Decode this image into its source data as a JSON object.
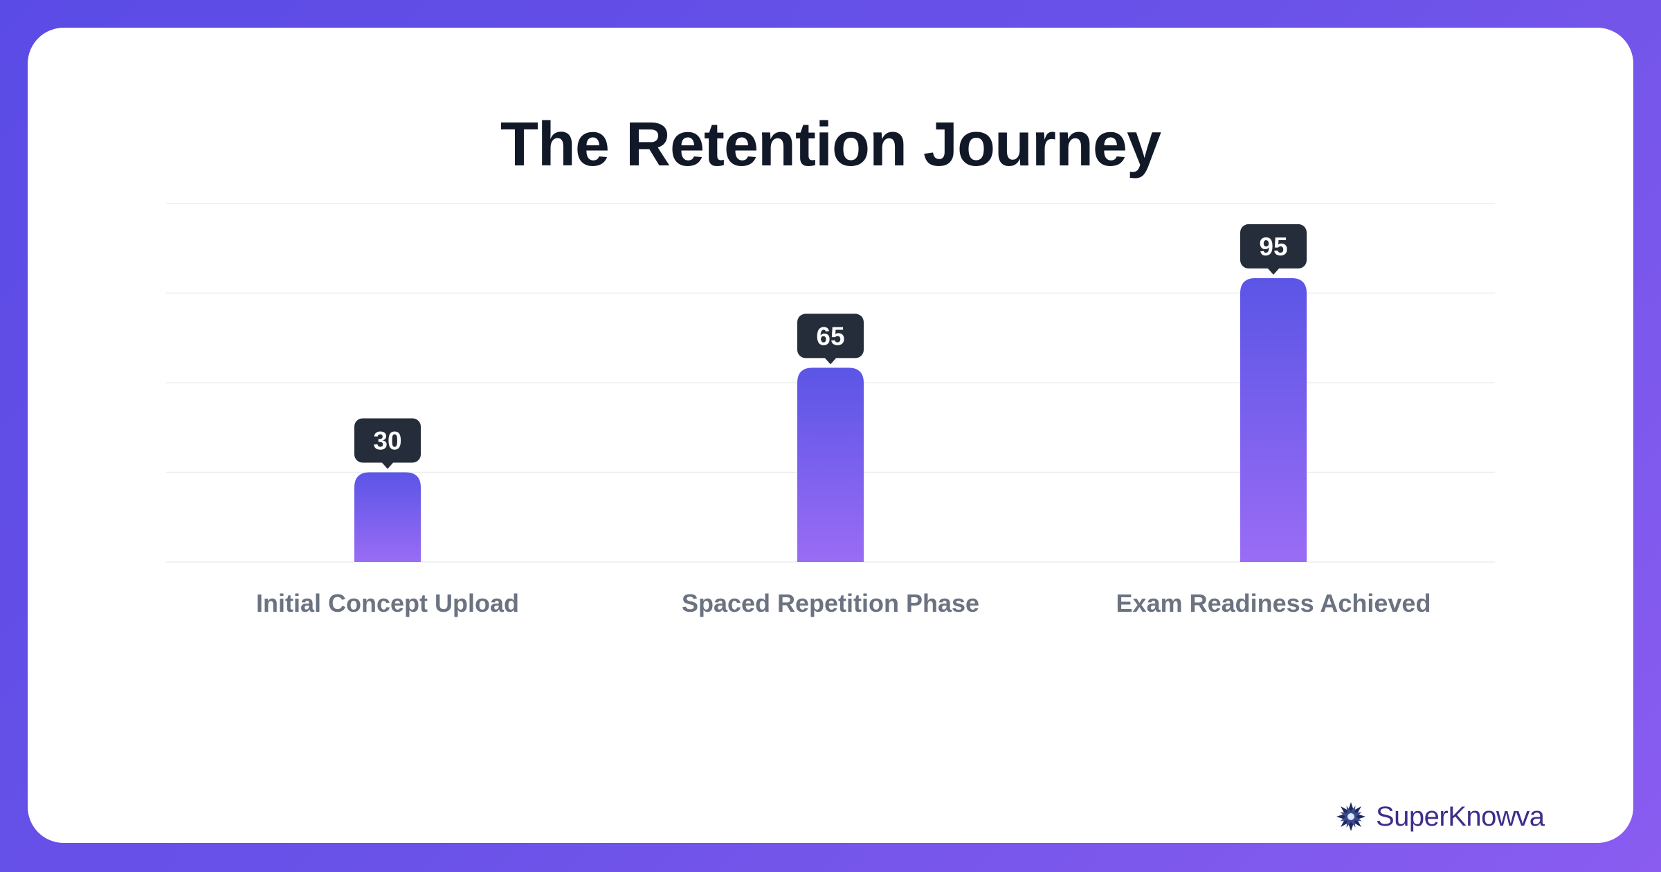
{
  "title": "The Retention Journey",
  "brand": {
    "name": "SuperKnowva",
    "logo_icon": "star-burst-logo-icon"
  },
  "colors": {
    "background_start": "#5b4be6",
    "background_end": "#8a5cf0",
    "bar_top": "#5b55e6",
    "bar_bottom": "#9a6cf5",
    "label_badge": "#262d3a",
    "axis_label": "#6b7280",
    "gridline": "#eceef1",
    "title": "#111827"
  },
  "chart_data": {
    "type": "bar",
    "title": "The Retention Journey",
    "categories": [
      "Initial Concept Upload",
      "Spaced Repetition Phase",
      "Exam Readiness Achieved"
    ],
    "values": [
      30,
      65,
      95
    ],
    "ylim": [
      0,
      120
    ],
    "grid": true,
    "data_labels": true,
    "xlabel": "",
    "ylabel": ""
  }
}
